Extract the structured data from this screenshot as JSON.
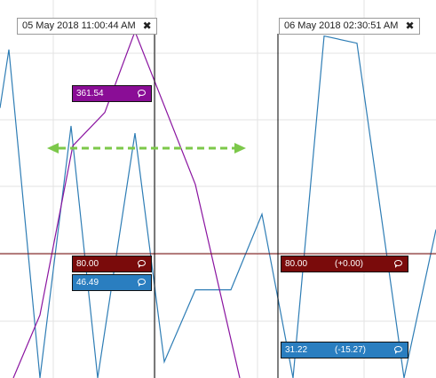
{
  "chart_data": {
    "type": "line",
    "grid": true,
    "ylim": [
      0,
      420
    ],
    "y_baseline": 80.0,
    "series": [
      {
        "color": "#2e7db5",
        "points": [
          [
            0,
            300
          ],
          [
            10,
            365
          ],
          [
            45,
            0
          ],
          [
            80,
            280
          ],
          [
            110,
            0
          ],
          [
            152,
            272
          ],
          [
            185,
            18
          ],
          [
            220,
            98
          ],
          [
            260,
            98
          ],
          [
            295,
            182
          ],
          [
            330,
            0
          ],
          [
            365,
            380
          ],
          [
            402,
            372
          ],
          [
            455,
            0
          ],
          [
            491,
            165
          ]
        ]
      },
      {
        "color": "#8a14a0",
        "points": [
          [
            15,
            0
          ],
          [
            45,
            70
          ],
          [
            82,
            258
          ],
          [
            118,
            295
          ],
          [
            152,
            385
          ],
          [
            220,
            215
          ],
          [
            270,
            0
          ]
        ]
      }
    ],
    "crosshairs": [
      {
        "datetime": "05 May 2018 11:00:44 AM",
        "values": [
          {
            "text": "361.54",
            "color": "#8a0d96"
          },
          {
            "text": "80.00",
            "color": "#7a0b0b"
          },
          {
            "text": "46.49",
            "color": "#2a7ec0"
          }
        ]
      },
      {
        "datetime": "06 May 2018 02:30:51 AM",
        "values": [
          {
            "text": "80.00",
            "change": "(+0.00)",
            "color": "#7a0b0b"
          },
          {
            "text": "31.22",
            "change": "(-15.27)",
            "color": "#2a7ec0"
          }
        ]
      }
    ],
    "measure_arrow_color": "#7cc84a"
  }
}
